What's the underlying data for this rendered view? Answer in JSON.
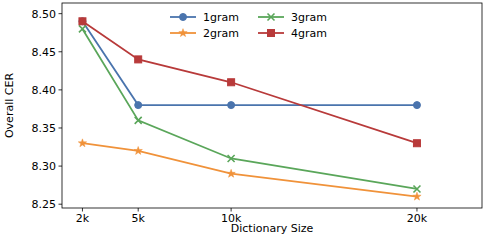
{
  "chart_data": {
    "type": "line",
    "x_label": "Dictionary Size",
    "y_label": "Overall CER",
    "x": [
      2000,
      5000,
      10000,
      20000
    ],
    "xlim": [
      900,
      23500
    ],
    "xticks": [
      {
        "value": 2000,
        "label": "2k"
      },
      {
        "value": 5000,
        "label": "5k"
      },
      {
        "value": 10000,
        "label": "10k"
      },
      {
        "value": 20000,
        "label": "20k"
      }
    ],
    "ylim": [
      8.245,
      8.514
    ],
    "yticks": [
      8.25,
      {
        "value": 8.3,
        "label": "8.30"
      },
      8.35,
      {
        "value": 8.4,
        "label": "8.40"
      },
      8.45,
      {
        "value": 8.5,
        "label": "8.50"
      }
    ],
    "grid": false,
    "legend": "upper center",
    "series": [
      {
        "name": "1gram",
        "color": "#4a74ad",
        "marker": "circle",
        "values": [
          8.49,
          8.38,
          8.38,
          8.38
        ]
      },
      {
        "name": "2gram",
        "color": "#f0923a",
        "marker": "star",
        "values": [
          8.33,
          8.32,
          8.29,
          8.26
        ]
      },
      {
        "name": "3gram",
        "color": "#5aa65a",
        "marker": "x",
        "values": [
          8.48,
          8.36,
          8.31,
          8.27
        ]
      },
      {
        "name": "4gram",
        "color": "#b83a3a",
        "marker": "square",
        "values": [
          8.49,
          8.44,
          8.41,
          8.33
        ]
      }
    ]
  }
}
